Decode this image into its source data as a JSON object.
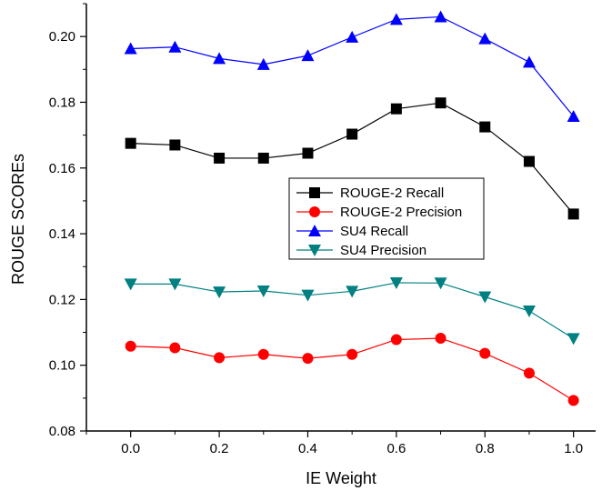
{
  "chart_data": {
    "type": "line",
    "title": "",
    "xlabel": "IE Weight",
    "ylabel": "ROUGE SCOREs",
    "xlim": [
      -0.1,
      1.05
    ],
    "ylim": [
      0.08,
      0.21
    ],
    "x_ticks": [
      "0.0",
      "0.2",
      "0.4",
      "0.6",
      "0.8",
      "1.0"
    ],
    "y_ticks": [
      "0.08",
      "0.10",
      "0.12",
      "0.14",
      "0.16",
      "0.18",
      "0.20"
    ],
    "x": [
      0.0,
      0.1,
      0.2,
      0.3,
      0.4,
      0.5,
      0.6,
      0.7,
      0.8,
      0.9,
      1.0
    ],
    "grid": false,
    "legend_position": "center-right",
    "series": [
      {
        "name": "ROUGE-2 Recall",
        "color": "#000000",
        "marker": "square",
        "values": [
          0.1675,
          0.167,
          0.163,
          0.163,
          0.1645,
          0.1703,
          0.178,
          0.1798,
          0.1725,
          0.162,
          0.146
        ]
      },
      {
        "name": "ROUGE-2 Precision",
        "color": "#ff0000",
        "marker": "circle",
        "values": [
          0.1058,
          0.1053,
          0.1023,
          0.1033,
          0.1021,
          0.1033,
          0.1078,
          0.1082,
          0.1036,
          0.0976,
          0.0893
        ]
      },
      {
        "name": "SU4 Recall",
        "color": "#0000ff",
        "marker": "triangle-up",
        "values": [
          0.1963,
          0.1968,
          0.1933,
          0.1915,
          0.1942,
          0.1998,
          0.2052,
          0.206,
          0.1993,
          0.1922,
          0.1757
        ]
      },
      {
        "name": "SU4 Precision",
        "color": "#008080",
        "marker": "triangle-down",
        "values": [
          0.1247,
          0.1247,
          0.1223,
          0.1226,
          0.1213,
          0.1225,
          0.1251,
          0.125,
          0.1208,
          0.1165,
          0.1081
        ]
      }
    ]
  }
}
